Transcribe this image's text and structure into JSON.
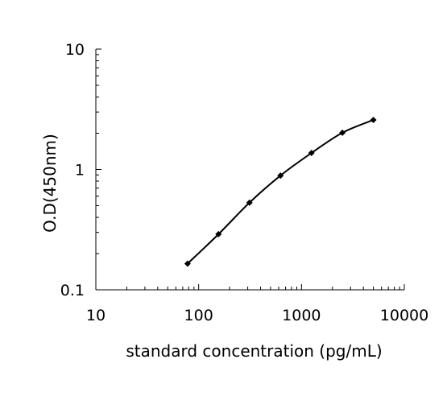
{
  "chart_data": {
    "type": "line",
    "title": "",
    "xlabel": "standard concentration (pg/mL)",
    "ylabel": "O.D(450nm)",
    "x_scale": "log",
    "y_scale": "log",
    "xlim": [
      10,
      10000
    ],
    "ylim": [
      0.1,
      10
    ],
    "x_ticks": [
      10,
      100,
      1000,
      10000
    ],
    "x_tick_labels": [
      "10",
      "100",
      "1000",
      "10000"
    ],
    "y_ticks": [
      0.1,
      1,
      10
    ],
    "y_tick_labels": [
      "0.1",
      "1",
      "10"
    ],
    "grid": false,
    "legend": "none",
    "series": [
      {
        "x": [
          78,
          156,
          312,
          625,
          1250,
          2500,
          5000
        ],
        "y": [
          0.165,
          0.29,
          0.53,
          0.89,
          1.37,
          2.02,
          2.58
        ],
        "marker": "diamond",
        "color": "#000000"
      }
    ]
  }
}
